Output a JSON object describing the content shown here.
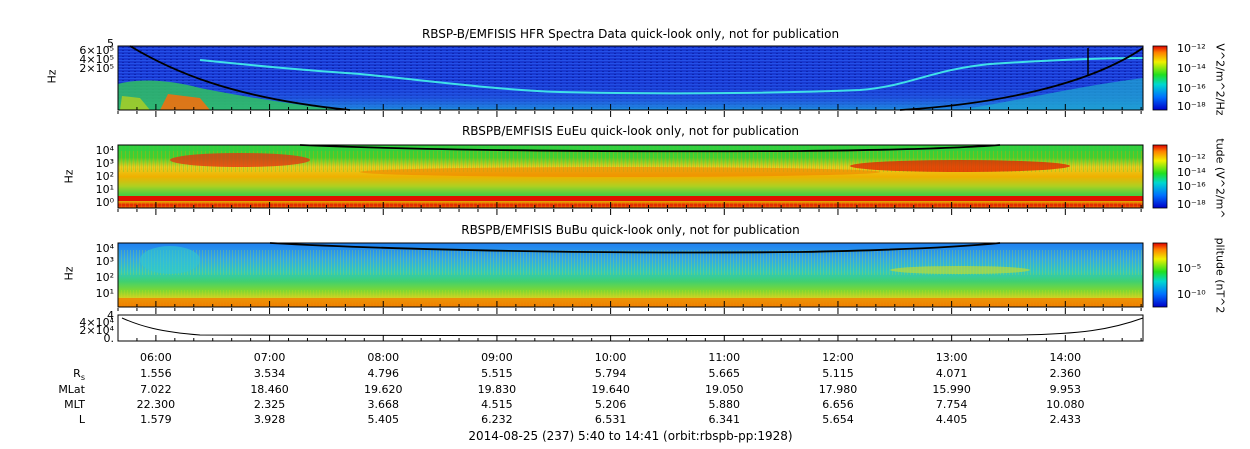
{
  "panels": [
    {
      "title": "RBSP-B/EMFISIS  HFR Spectra Data quick-look only, not for publication",
      "ylabel": "Hz",
      "yticks": [
        "6×10⁵",
        "4×10⁵",
        "2×10⁵"
      ],
      "ytick_top": "5",
      "cb_label": "V^2/m^2/Hz",
      "cb_ticks": [
        "10⁻¹²",
        "10⁻¹⁴",
        "10⁻¹⁶",
        "10⁻¹⁸"
      ]
    },
    {
      "title": "RBSPB/EMFISIS  EuEu quick-look only, not for publication",
      "ylabel": "Hz",
      "yticks": [
        "10⁴",
        "10³",
        "10²",
        "10¹",
        "10⁰"
      ],
      "cb_label": "tude (V^2/m^",
      "cb_ticks": [
        "10⁻¹²",
        "10⁻¹⁴",
        "10⁻¹⁶",
        "10⁻¹⁸"
      ]
    },
    {
      "title": "RBSPB/EMFISIS  BuBu quick-look only, not for publication",
      "ylabel": "Hz",
      "yticks": [
        "10⁴",
        "10³",
        "10²",
        "10¹"
      ],
      "cb_label": "plitude (nT^2",
      "cb_ticks": [
        "10⁻⁵",
        "10⁻¹⁰"
      ]
    },
    {
      "title": "",
      "yticks": [
        "4×10⁴",
        "2×10⁴",
        "0."
      ],
      "ytick_top": "4"
    }
  ],
  "ephemeris": {
    "times": [
      "06:00",
      "07:00",
      "08:00",
      "09:00",
      "10:00",
      "11:00",
      "12:00",
      "13:00",
      "14:00"
    ],
    "rows": [
      {
        "label": "R",
        "label_sub": "s",
        "values": [
          "1.556",
          "3.534",
          "4.796",
          "5.515",
          "5.794",
          "5.665",
          "5.115",
          "4.071",
          "2.360"
        ]
      },
      {
        "label": "MLat",
        "values": [
          "7.022",
          "18.460",
          "19.620",
          "19.830",
          "19.640",
          "19.050",
          "17.980",
          "15.990",
          "9.953"
        ]
      },
      {
        "label": "MLT",
        "values": [
          "22.300",
          "2.325",
          "3.668",
          "4.515",
          "5.206",
          "5.880",
          "6.656",
          "7.754",
          "10.080"
        ]
      },
      {
        "label": "L",
        "values": [
          "1.579",
          "3.928",
          "5.405",
          "6.232",
          "6.531",
          "6.341",
          "5.654",
          "4.405",
          "2.433"
        ]
      }
    ]
  },
  "footer": "2014-08-25 (237) 5:40 to 14:41 (orbit:rbspb-pp:1928)",
  "chart_data": [
    {
      "type": "heatmap",
      "title": "RBSP-B/EMFISIS  HFR Spectra Data quick-look only, not for publication",
      "ylabel": "Hz",
      "colorbar_label": "V^2/m^2/Hz",
      "colorbar_range_log10": [
        -18,
        -12
      ],
      "x_range": [
        "05:40",
        "14:41"
      ],
      "y_ticks": [
        "2×10⁵",
        "4×10⁵",
        "6×10⁵"
      ],
      "y_axis_top_label": "5",
      "background_color": "#1a3ad8"
    },
    {
      "type": "heatmap",
      "title": "RBSPB/EMFISIS  EuEu quick-look only, not for publication",
      "ylabel": "Hz",
      "y_scale": "log",
      "y_ticks": [
        "10⁰",
        "10¹",
        "10²",
        "10³",
        "10⁴"
      ],
      "colorbar_label": "tude (V^2/m^",
      "colorbar_range_log10": [
        -18,
        -12
      ],
      "x_range": [
        "05:40",
        "14:41"
      ]
    },
    {
      "type": "heatmap",
      "title": "RBSPB/EMFISIS  BuBu quick-look only, not for publication",
      "ylabel": "Hz",
      "y_scale": "log",
      "y_ticks": [
        "10¹",
        "10²",
        "10³",
        "10⁴"
      ],
      "colorbar_label": "plitude (nT^2",
      "colorbar_ticks_log10": [
        -10,
        -5
      ],
      "x_range": [
        "05:40",
        "14:41"
      ]
    },
    {
      "type": "line",
      "x_range": [
        "05:40",
        "14:41"
      ],
      "y_ticks": [
        "0.",
        "2×10⁴",
        "4×10⁴"
      ],
      "y_axis_top_label": "4",
      "x_ticks": [
        "06:00",
        "07:00",
        "08:00",
        "09:00",
        "10:00",
        "11:00",
        "12:00",
        "13:00",
        "14:00"
      ]
    }
  ]
}
